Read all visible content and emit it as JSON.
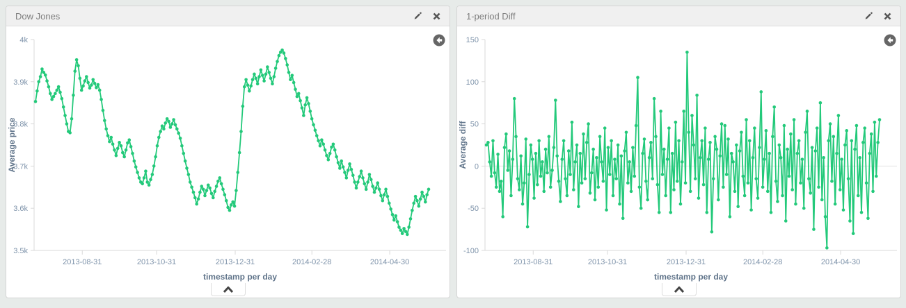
{
  "page": {
    "background_color": "#e7ebe9"
  },
  "accent_color": "#23c97a",
  "panels": [
    {
      "title": "Dow Jones",
      "edit_icon": "pencil-icon",
      "close_icon": "close-icon",
      "history_icon": "circle-back-arrow-icon",
      "spy_icon": "chevron-up-icon"
    },
    {
      "title": "1-period Diff",
      "edit_icon": "pencil-icon",
      "close_icon": "close-icon",
      "history_icon": "circle-back-arrow-icon",
      "spy_icon": "chevron-up-icon"
    }
  ],
  "chart_data": [
    {
      "type": "line",
      "title": "Dow Jones",
      "series_color": "#23c97a",
      "xlabel": "timestamp per day",
      "ylabel": "Average price",
      "ylim": [
        3500,
        4000
      ],
      "grid": false,
      "zero_line": false,
      "legend": "none",
      "yticks": [
        {
          "v": 4000,
          "label": "4k"
        },
        {
          "v": 3900,
          "label": "3.9k"
        },
        {
          "v": 3800,
          "label": "3.8k"
        },
        {
          "v": 3700,
          "label": "3.7k"
        },
        {
          "v": 3600,
          "label": "3.6k"
        },
        {
          "v": 3500,
          "label": "3.5k"
        }
      ],
      "xticks": [
        {
          "f": 0.119,
          "label": "2013-08-31"
        },
        {
          "f": 0.308,
          "label": "2013-10-31"
        },
        {
          "f": 0.508,
          "label": "2013-12-31"
        },
        {
          "f": 0.703,
          "label": "2014-02-28"
        },
        {
          "f": 0.901,
          "label": "2014-04-30"
        }
      ],
      "values": [
        3853,
        3878,
        3900,
        3912,
        3930,
        3922,
        3916,
        3902,
        3888,
        3872,
        3858,
        3865,
        3872,
        3880,
        3888,
        3875,
        3860,
        3840,
        3820,
        3800,
        3782,
        3779,
        3812,
        3868,
        3925,
        3952,
        3938,
        3908,
        3880,
        3890,
        3902,
        3912,
        3898,
        3885,
        3892,
        3905,
        3896,
        3886,
        3893,
        3880,
        3858,
        3832,
        3808,
        3788,
        3772,
        3758,
        3768,
        3752,
        3738,
        3725,
        3742,
        3756,
        3748,
        3732,
        3722,
        3738,
        3755,
        3762,
        3746,
        3730,
        3712,
        3698,
        3685,
        3672,
        3662,
        3658,
        3672,
        3688,
        3662,
        3655,
        3668,
        3680,
        3700,
        3722,
        3748,
        3768,
        3782,
        3795,
        3788,
        3802,
        3812,
        3806,
        3792,
        3800,
        3810,
        3798,
        3788,
        3778,
        3766,
        3748,
        3730,
        3712,
        3695,
        3680,
        3662,
        3650,
        3638,
        3625,
        3610,
        3622,
        3638,
        3652,
        3645,
        3630,
        3642,
        3655,
        3648,
        3635,
        3625,
        3640,
        3652,
        3664,
        3672,
        3658,
        3645,
        3632,
        3618,
        3602,
        3595,
        3608,
        3615,
        3605,
        3642,
        3685,
        3732,
        3782,
        3842,
        3888,
        3905,
        3892,
        3878,
        3890,
        3905,
        3918,
        3908,
        3895,
        3912,
        3928,
        3915,
        3902,
        3918,
        3935,
        3922,
        3908,
        3895,
        3912,
        3932,
        3948,
        3962,
        3970,
        3975,
        3968,
        3955,
        3940,
        3922,
        3905,
        3915,
        3898,
        3882,
        3865,
        3872,
        3855,
        3838,
        3820,
        3845,
        3862,
        3848,
        3830,
        3812,
        3798,
        3785,
        3772,
        3760,
        3748,
        3762,
        3752,
        3738,
        3725,
        3715,
        3730,
        3745,
        3752,
        3738,
        3722,
        3708,
        3695,
        3712,
        3698,
        3685,
        3672,
        3690,
        3705,
        3692,
        3678,
        3662,
        3648,
        3662,
        3675,
        3688,
        3672,
        3658,
        3645,
        3662,
        3680,
        3668,
        3652,
        3638,
        3648,
        3660,
        3645,
        3630,
        3618,
        3632,
        3645,
        3628,
        3612,
        3598,
        3585,
        3572,
        3582,
        3568,
        3555,
        3548,
        3540,
        3552,
        3545,
        3538,
        3555,
        3575,
        3595,
        3612,
        3628,
        3618,
        3605,
        3622,
        3638,
        3628,
        3615,
        3632,
        3645
      ]
    },
    {
      "type": "line",
      "title": "1-period Diff",
      "series_color": "#23c97a",
      "xlabel": "timestamp per day",
      "ylabel": "Average diff",
      "ylim": [
        -100,
        150
      ],
      "grid": false,
      "zero_line": true,
      "legend": "none",
      "yticks": [
        {
          "v": 150,
          "label": "150"
        },
        {
          "v": 100,
          "label": "100"
        },
        {
          "v": 50,
          "label": "50"
        },
        {
          "v": 0,
          "label": "0"
        },
        {
          "v": -50,
          "label": "-50"
        },
        {
          "v": -100,
          "label": "-100"
        }
      ],
      "xticks": [
        {
          "f": 0.119,
          "label": "2013-08-31"
        },
        {
          "f": 0.308,
          "label": "2013-10-31"
        },
        {
          "f": 0.508,
          "label": "2013-12-31"
        },
        {
          "f": 0.703,
          "label": "2014-02-28"
        },
        {
          "f": 0.901,
          "label": "2014-04-30"
        }
      ],
      "values": [
        25,
        28,
        5,
        -12,
        30,
        -8,
        -25,
        14,
        -30,
        -18,
        -60,
        22,
        38,
        -5,
        18,
        -35,
        8,
        80,
        35,
        -15,
        -28,
        12,
        -45,
        -20,
        32,
        -72,
        -10,
        25,
        8,
        -38,
        15,
        -22,
        30,
        -12,
        5,
        -30,
        20,
        -8,
        35,
        -25,
        -5,
        22,
        78,
        12,
        -18,
        -42,
        8,
        30,
        -15,
        -35,
        18,
        -10,
        52,
        -28,
        5,
        25,
        -48,
        15,
        -20,
        38,
        -15,
        28,
        50,
        -32,
        -8,
        20,
        -40,
        10,
        -25,
        35,
        5,
        -18,
        45,
        -52,
        22,
        -10,
        30,
        -35,
        8,
        -15,
        25,
        -45,
        12,
        -62,
        18,
        40,
        -20,
        5,
        -30,
        22,
        -12,
        48,
        105,
        -25,
        -50,
        15,
        32,
        -18,
        -40,
        10,
        28,
        -15,
        80,
        35,
        -22,
        -55,
        65,
        -10,
        20,
        -35,
        8,
        45,
        -55,
        15,
        -28,
        52,
        -18,
        30,
        -45,
        5,
        65,
        -20,
        135,
        40,
        -30,
        60,
        25,
        -15,
        84,
        -38,
        10,
        30,
        -22,
        45,
        -55,
        8,
        28,
        -78,
        -15,
        35,
        20,
        -40,
        12,
        50,
        -25,
        48,
        -10,
        32,
        -60,
        15,
        5,
        -30,
        25,
        -48,
        18,
        40,
        -12,
        -35,
        55,
        -20,
        30,
        -52,
        10,
        45,
        -15,
        -38,
        22,
        88,
        -25,
        8,
        42,
        -30,
        15,
        -55,
        35,
        70,
        -18,
        -42,
        25,
        10,
        -35,
        48,
        -65,
        20,
        -12,
        38,
        -28,
        55,
        -45,
        15,
        30,
        -20,
        8,
        -50,
        40,
        65,
        -15,
        -32,
        22,
        -75,
        18,
        45,
        -25,
        75,
        -40,
        10,
        -60,
        -97,
        30,
        50,
        -18,
        35,
        -45,
        15,
        60,
        -28,
        8,
        -52,
        25,
        42,
        -15,
        -65,
        30,
        -80,
        20,
        48,
        -35,
        10,
        -55,
        28,
        45,
        -20,
        -62,
        15,
        38,
        -30,
        52,
        -12,
        28,
        55
      ]
    }
  ]
}
